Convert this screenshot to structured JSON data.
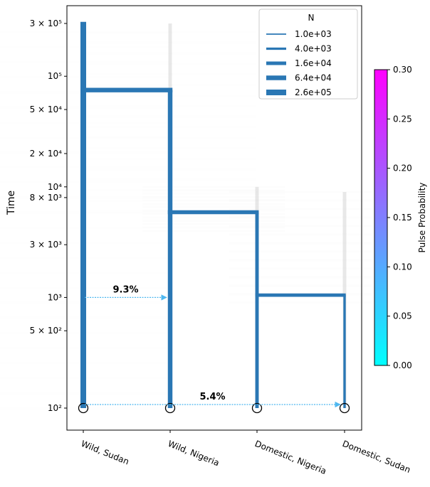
{
  "chart_data": {
    "type": "demography-tree",
    "ylabel": "Time",
    "yscale": "log",
    "ylim": [
      70,
      380000
    ],
    "y_ticks": [
      {
        "value": 300000,
        "label": "3 × 10⁵"
      },
      {
        "value": 100000,
        "label": "10⁵"
      },
      {
        "value": 50000,
        "label": "5 × 10⁴"
      },
      {
        "value": 20000,
        "label": "2 × 10⁴"
      },
      {
        "value": 10000,
        "label": "10⁴"
      },
      {
        "value": 8000,
        "label": "8 × 10³"
      },
      {
        "value": 3000,
        "label": "3 × 10³"
      },
      {
        "value": 1000,
        "label": "10³"
      },
      {
        "value": 500,
        "label": "5 × 10²"
      },
      {
        "value": 100,
        "label": "10²"
      }
    ],
    "populations": [
      "Wild, Sudan",
      "Wild, Nigeria",
      "Domestic, Nigeria",
      "Domestic, Sudan"
    ],
    "branches": [
      {
        "pop": 0,
        "from": 100,
        "to": 310000,
        "N": 260000
      },
      {
        "pop": 1,
        "from": 100,
        "to": 75000,
        "N": 64000
      },
      {
        "pop": 2,
        "from": 100,
        "to": 5900,
        "N": 16000
      },
      {
        "pop": 3,
        "from": 100,
        "to": 1050,
        "N": 4000
      }
    ],
    "splits": [
      {
        "from_pop": 0,
        "to_pop": 1,
        "time": 75000,
        "N": 260000
      },
      {
        "from_pop": 1,
        "to_pop": 2,
        "time": 5900,
        "N": 64000
      },
      {
        "from_pop": 2,
        "to_pop": 3,
        "time": 1050,
        "N": 16000
      }
    ],
    "pulses": [
      {
        "source": 0,
        "dest": 1,
        "time": 1000,
        "label": "9.3%",
        "probability": 0.093
      },
      {
        "source": 0,
        "dest": 3,
        "time": 100,
        "label": "5.4%",
        "probability": 0.054
      }
    ],
    "legend": {
      "title": "N",
      "placement": "top-right",
      "entries": [
        {
          "label": "1.0e+03",
          "value": 1000
        },
        {
          "label": "4.0e+03",
          "value": 4000
        },
        {
          "label": "1.6e+04",
          "value": 16000
        },
        {
          "label": "6.4e+04",
          "value": 64000
        },
        {
          "label": "2.6e+05",
          "value": 260000
        }
      ]
    },
    "colorbar": {
      "label": "Pulse Probability",
      "range": [
        0.0,
        0.3
      ],
      "color_low": "#00ffff",
      "color_high": "#ff00ff",
      "ticks": [
        {
          "value": 0.0,
          "label": "0.00"
        },
        {
          "value": 0.05,
          "label": "0.05"
        },
        {
          "value": 0.1,
          "label": "0.10"
        },
        {
          "value": 0.15,
          "label": "0.15"
        },
        {
          "value": 0.2,
          "label": "0.20"
        },
        {
          "value": 0.25,
          "label": "0.25"
        },
        {
          "value": 0.3,
          "label": "0.30"
        }
      ]
    },
    "colors": {
      "branch": "#2a77b4",
      "pulse": "#4fb8f0",
      "ghost": "#bdbdbd"
    }
  }
}
